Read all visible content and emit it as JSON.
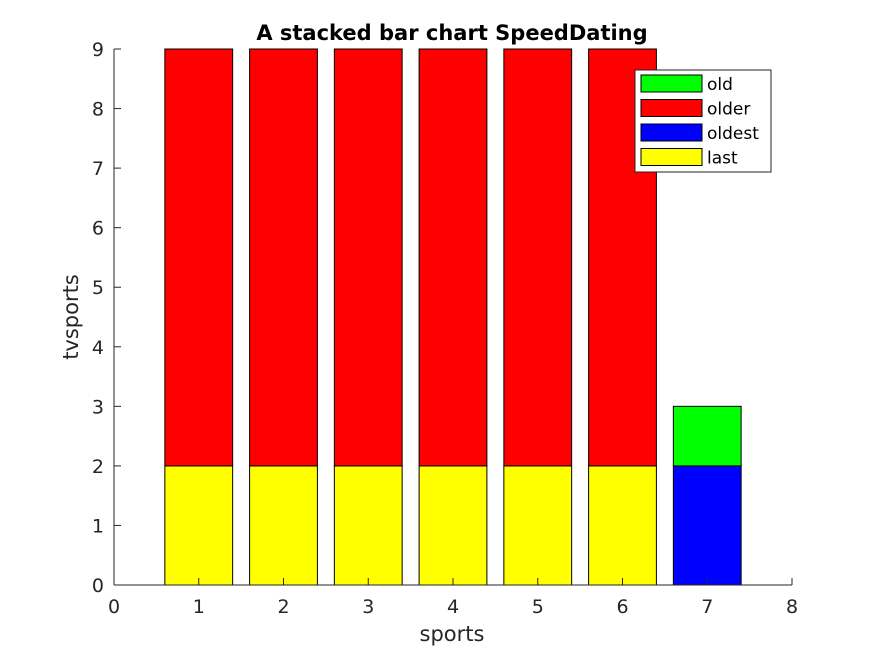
{
  "chart_data": {
    "type": "bar",
    "stacked": true,
    "title": "A stacked bar chart SpeedDating",
    "xlabel": "sports",
    "ylabel": "tvsports",
    "xlim": [
      0,
      8
    ],
    "ylim": [
      0,
      9
    ],
    "xticks": [
      0,
      1,
      2,
      3,
      4,
      5,
      6,
      7,
      8
    ],
    "yticks": [
      0,
      1,
      2,
      3,
      4,
      5,
      6,
      7,
      8,
      9
    ],
    "grid": false,
    "legend_position": "top-right",
    "x": [
      1,
      2,
      3,
      4,
      5,
      6,
      7
    ],
    "series": [
      {
        "name": "last",
        "color": "#ffff00",
        "values": [
          2,
          2,
          2,
          2,
          2,
          2,
          0
        ]
      },
      {
        "name": "oldest",
        "color": "#0000ff",
        "values": [
          0,
          0,
          0,
          0,
          0,
          0,
          2
        ]
      },
      {
        "name": "older",
        "color": "#ff0000",
        "values": [
          7,
          7,
          7,
          7,
          7,
          7,
          0
        ]
      },
      {
        "name": "old",
        "color": "#00ff00",
        "values": [
          0,
          0,
          0,
          0,
          0,
          0,
          1
        ]
      }
    ],
    "legend_order": [
      "old",
      "older",
      "oldest",
      "last"
    ]
  }
}
